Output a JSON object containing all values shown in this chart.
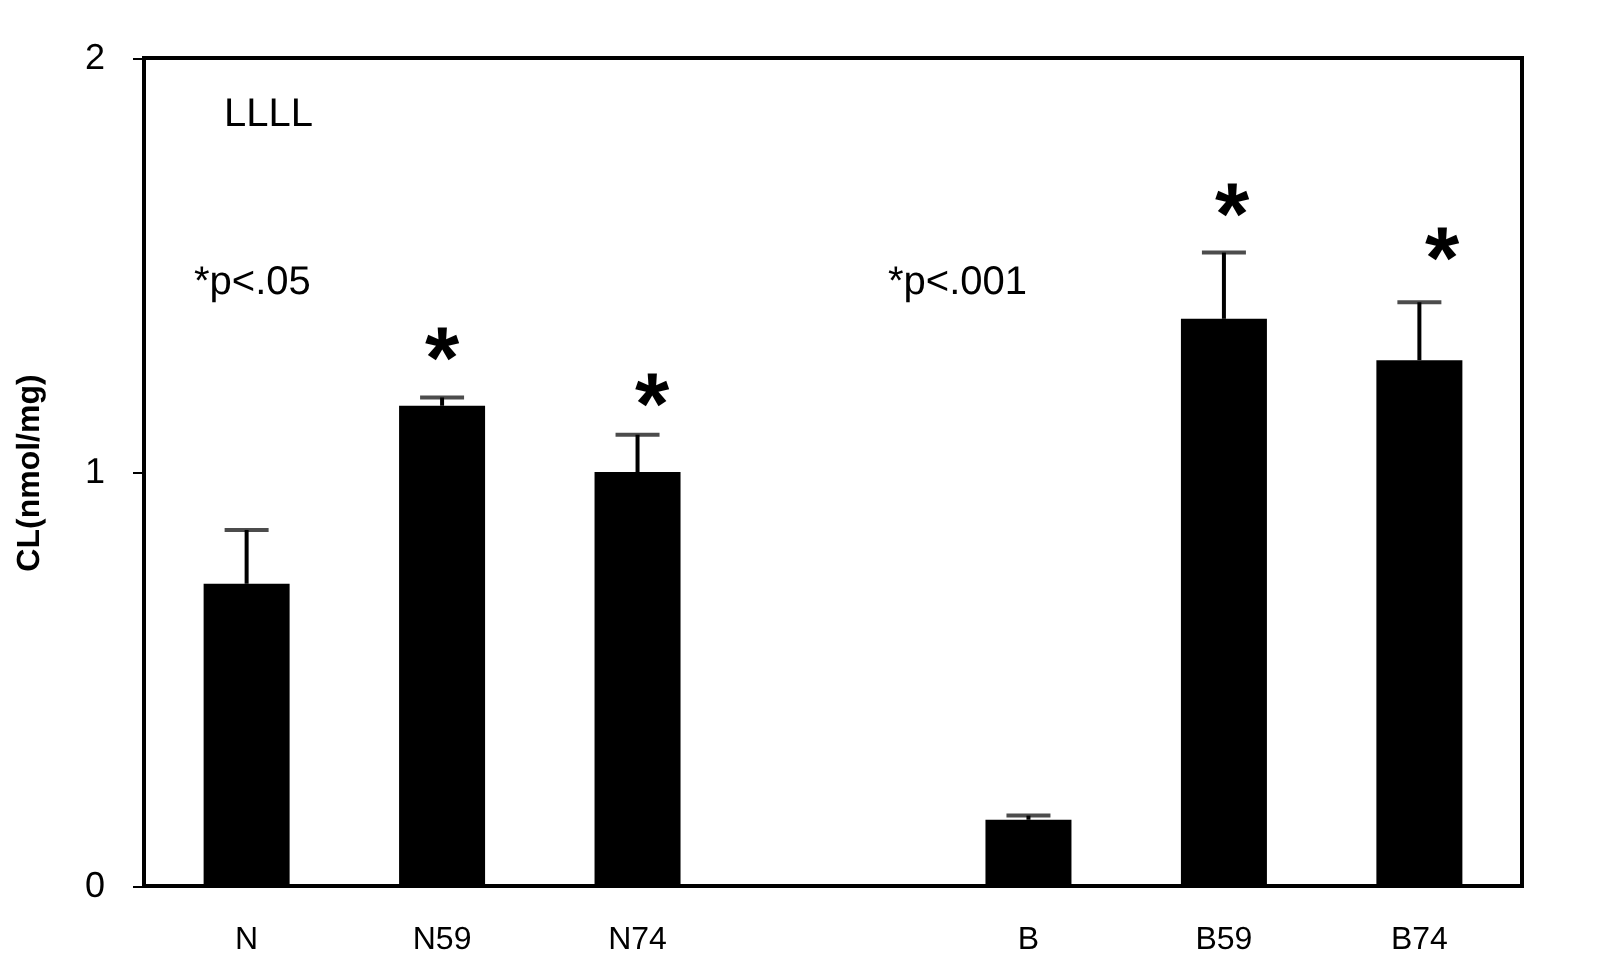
{
  "chart_data": {
    "type": "bar",
    "ylabel": "CL(nmol/mg)",
    "categories": [
      "N",
      "N59",
      "N74",
      null,
      "B",
      "B59",
      "B74"
    ],
    "values": [
      0.73,
      1.16,
      1.0,
      null,
      0.16,
      1.37,
      1.27
    ],
    "errors": [
      0.13,
      0.02,
      0.09,
      null,
      0.01,
      0.16,
      0.14
    ],
    "color": "#000000",
    "ylim": [
      0,
      2
    ],
    "yticks": [
      0,
      1,
      2
    ],
    "grid": false,
    "annotations": [
      "LLLL",
      "*p<.05",
      "*p<.001",
      "*",
      "*",
      "*",
      "*"
    ]
  }
}
